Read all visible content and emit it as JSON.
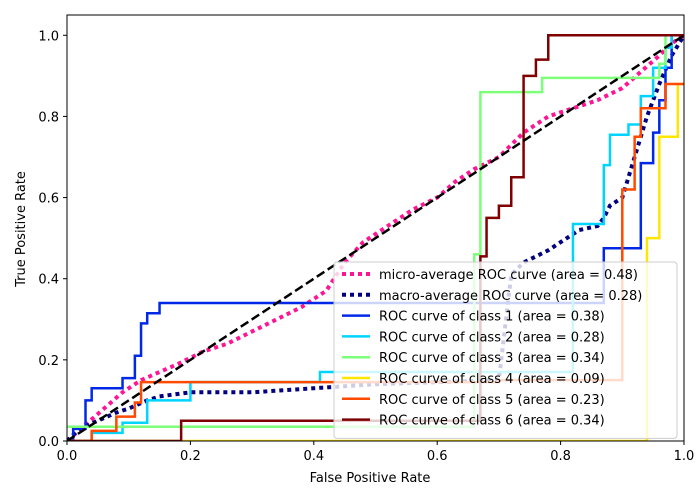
{
  "chart_data": {
    "type": "line",
    "title": "",
    "xlabel": "False Positive Rate",
    "ylabel": "True Positive Rate",
    "xlim": [
      0.0,
      1.0
    ],
    "ylim": [
      0.0,
      1.05
    ],
    "xticks": [
      0.0,
      0.2,
      0.4,
      0.6,
      0.8,
      1.0
    ],
    "yticks": [
      0.0,
      0.2,
      0.4,
      0.6,
      0.8,
      1.0
    ],
    "xtick_labels": [
      "0.0",
      "0.2",
      "0.4",
      "0.6",
      "0.8",
      "1.0"
    ],
    "ytick_labels": [
      "0.0",
      "0.2",
      "0.4",
      "0.6",
      "0.8",
      "1.0"
    ],
    "grid": false,
    "legend_position": "lower-right",
    "series": [
      {
        "name": "micro-average ROC curve (area = 0.48)",
        "color": "#ff1493",
        "style": "dotted",
        "width": 4,
        "x": [
          0.0,
          0.03,
          0.06,
          0.09,
          0.12,
          0.15,
          0.18,
          0.22,
          0.26,
          0.3,
          0.34,
          0.38,
          0.42,
          0.45,
          0.48,
          0.52,
          0.56,
          0.6,
          0.63,
          0.66,
          0.7,
          0.74,
          0.78,
          0.82,
          0.86,
          0.9,
          0.93,
          0.96,
          0.98,
          1.0
        ],
        "y": [
          0.0,
          0.04,
          0.08,
          0.12,
          0.15,
          0.17,
          0.19,
          0.22,
          0.24,
          0.27,
          0.3,
          0.33,
          0.37,
          0.44,
          0.49,
          0.53,
          0.57,
          0.6,
          0.64,
          0.67,
          0.7,
          0.76,
          0.8,
          0.82,
          0.84,
          0.87,
          0.91,
          0.95,
          0.98,
          1.0
        ]
      },
      {
        "name": "macro-average ROC curve (area = 0.28)",
        "color": "#000080",
        "style": "dotted",
        "width": 4,
        "x": [
          0.0,
          0.02,
          0.05,
          0.08,
          0.1,
          0.13,
          0.15,
          0.2,
          0.3,
          0.4,
          0.5,
          0.7,
          0.72,
          0.74,
          0.78,
          0.8,
          0.83,
          0.86,
          0.87,
          0.88,
          0.9,
          0.92,
          0.94,
          0.96,
          0.98,
          1.0
        ],
        "y": [
          0.0,
          0.03,
          0.05,
          0.07,
          0.08,
          0.1,
          0.11,
          0.12,
          0.12,
          0.13,
          0.14,
          0.15,
          0.41,
          0.44,
          0.47,
          0.49,
          0.52,
          0.53,
          0.55,
          0.58,
          0.6,
          0.7,
          0.8,
          0.88,
          0.95,
          1.0
        ]
      },
      {
        "name": "ROC curve of class 1 (area = 0.38)",
        "color": "#0028e6",
        "style": "solid",
        "width": 2.5,
        "x": [
          0.0,
          0.01,
          0.01,
          0.03,
          0.03,
          0.04,
          0.04,
          0.09,
          0.09,
          0.11,
          0.11,
          0.12,
          0.12,
          0.13,
          0.13,
          0.15,
          0.15,
          0.87,
          0.87,
          0.93,
          0.93,
          0.95,
          0.95,
          0.96,
          0.96,
          0.97,
          0.97,
          0.98,
          0.98,
          1.0
        ],
        "y": [
          0.0,
          0.0,
          0.03,
          0.03,
          0.1,
          0.1,
          0.13,
          0.13,
          0.155,
          0.155,
          0.21,
          0.21,
          0.29,
          0.29,
          0.315,
          0.315,
          0.34,
          0.34,
          0.475,
          0.475,
          0.685,
          0.685,
          0.76,
          0.76,
          0.84,
          0.84,
          0.92,
          0.92,
          1.0,
          1.0
        ]
      },
      {
        "name": "ROC curve of class 2 (area = 0.28)",
        "color": "#00d4ff",
        "style": "solid",
        "width": 2.5,
        "x": [
          0.0,
          0.04,
          0.04,
          0.09,
          0.09,
          0.13,
          0.13,
          0.2,
          0.2,
          0.41,
          0.41,
          0.82,
          0.82,
          0.87,
          0.87,
          0.88,
          0.88,
          0.91,
          0.91,
          0.93,
          0.93,
          0.95,
          0.95,
          0.97,
          0.97,
          0.98,
          0.98,
          1.0
        ],
        "y": [
          0.0,
          0.0,
          0.02,
          0.02,
          0.045,
          0.045,
          0.1,
          0.1,
          0.145,
          0.145,
          0.17,
          0.17,
          0.535,
          0.535,
          0.68,
          0.68,
          0.755,
          0.755,
          0.78,
          0.78,
          0.85,
          0.85,
          0.92,
          0.92,
          0.97,
          0.97,
          1.0,
          1.0
        ]
      },
      {
        "name": "ROC curve of class 3 (area = 0.34)",
        "color": "#7dff7a",
        "style": "solid",
        "width": 2.5,
        "x": [
          0.0,
          0.66,
          0.66,
          0.67,
          0.67,
          0.77,
          0.77,
          0.96,
          0.96,
          0.97,
          0.97,
          1.0
        ],
        "y": [
          0.035,
          0.035,
          0.46,
          0.46,
          0.86,
          0.86,
          0.895,
          0.895,
          0.93,
          0.93,
          1.0,
          1.0
        ]
      },
      {
        "name": "ROC curve of class 4 (area = 0.09)",
        "color": "#ffe600",
        "style": "solid",
        "width": 2.5,
        "x": [
          0.0,
          0.8,
          0.8,
          0.94,
          0.94,
          0.96,
          0.96,
          0.99,
          0.99,
          1.0
        ],
        "y": [
          0.0,
          0.0,
          0.0,
          0.0,
          0.5,
          0.5,
          0.75,
          0.75,
          0.88,
          0.88
        ]
      },
      {
        "name": "ROC curve of class 5 (area = 0.23)",
        "color": "#ff4a00",
        "style": "solid",
        "width": 2.5,
        "x": [
          0.0,
          0.04,
          0.04,
          0.08,
          0.08,
          0.11,
          0.11,
          0.12,
          0.12,
          0.7,
          0.7,
          0.9,
          0.9,
          0.92,
          0.92,
          0.93,
          0.93,
          0.97,
          0.97,
          1.0
        ],
        "y": [
          0.0,
          0.0,
          0.025,
          0.025,
          0.06,
          0.06,
          0.095,
          0.095,
          0.145,
          0.145,
          0.15,
          0.15,
          0.62,
          0.62,
          0.75,
          0.75,
          0.82,
          0.82,
          0.88,
          0.88
        ]
      },
      {
        "name": "ROC curve of class 6 (area = 0.34)",
        "color": "#7f0000",
        "style": "solid",
        "width": 2.5,
        "x": [
          0.0,
          0.185,
          0.185,
          0.67,
          0.67,
          0.68,
          0.68,
          0.7,
          0.7,
          0.72,
          0.72,
          0.74,
          0.74,
          0.76,
          0.76,
          0.78,
          0.78,
          1.0
        ],
        "y": [
          0.0,
          0.0,
          0.05,
          0.05,
          0.455,
          0.455,
          0.55,
          0.55,
          0.58,
          0.58,
          0.65,
          0.65,
          0.9,
          0.9,
          0.94,
          0.94,
          1.0,
          1.0
        ]
      },
      {
        "name": "",
        "color": "#000000",
        "style": "dashed",
        "width": 2.5,
        "x": [
          0.0,
          1.0
        ],
        "y": [
          0.0,
          1.0
        ]
      }
    ]
  }
}
